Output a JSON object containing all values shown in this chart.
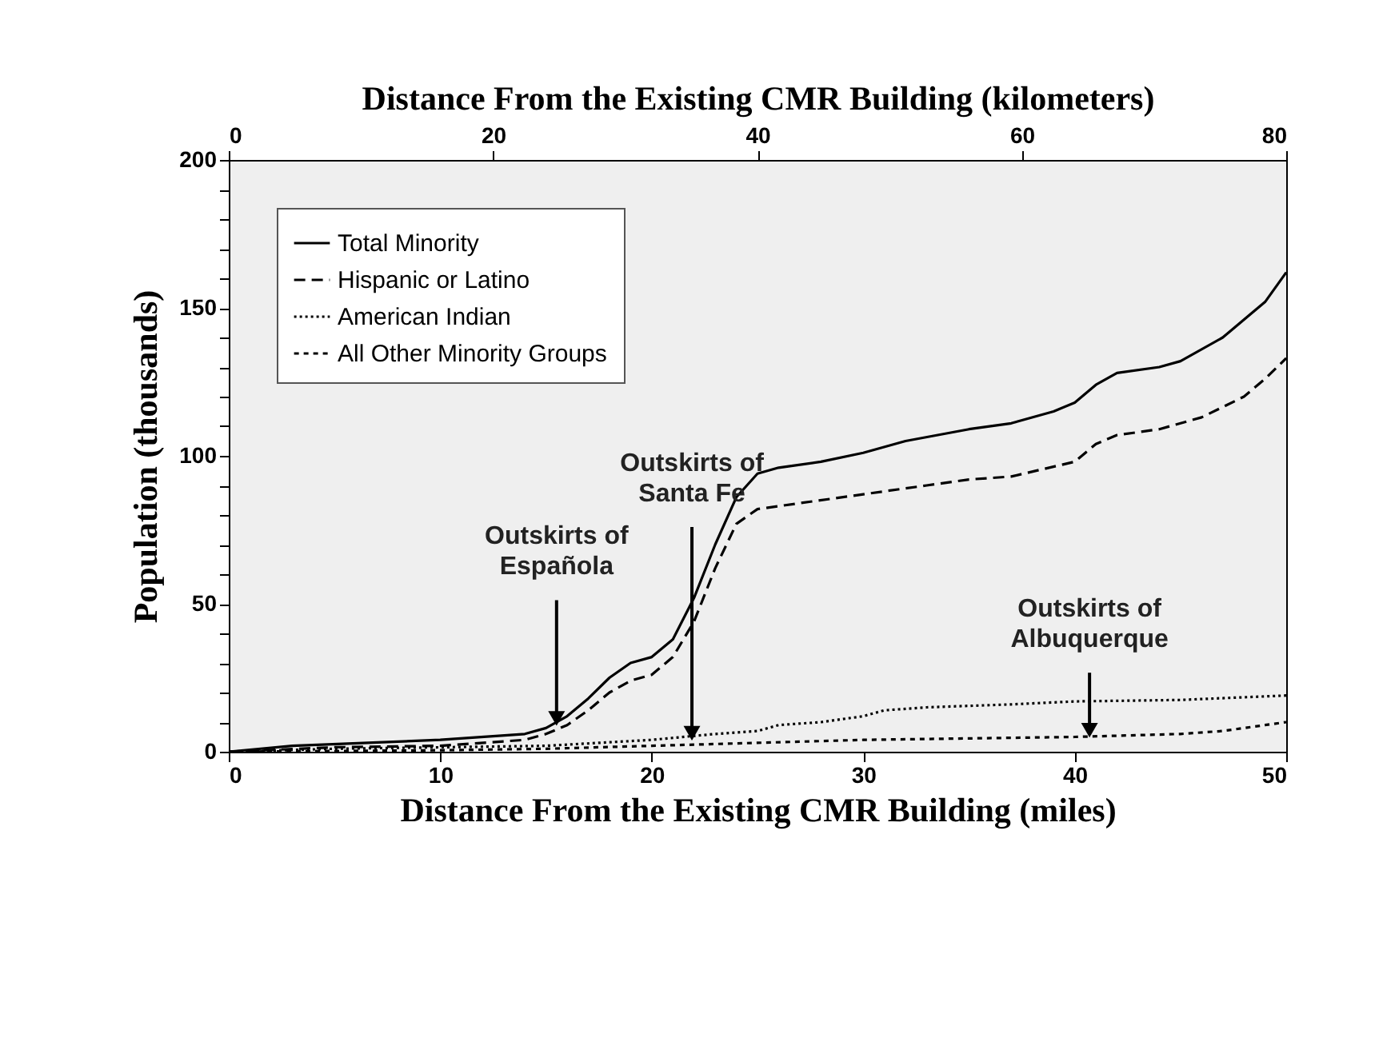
{
  "chart_data": {
    "type": "line",
    "xlabel": "Distance From the Existing CMR Building (miles)",
    "x2label": "Distance From the Existing CMR Building (kilometers)",
    "ylabel": "Population (thousands)",
    "xlim": [
      0,
      50
    ],
    "xticks": [
      0,
      10,
      20,
      30,
      40,
      50
    ],
    "x2lim": [
      0,
      80
    ],
    "x2ticks": [
      0,
      20,
      40,
      60,
      80
    ],
    "ylim": [
      0,
      200
    ],
    "yticks": [
      0,
      {
        "value": 10,
        "label": null
      },
      {
        "value": 20,
        "label": null
      },
      {
        "value": 30,
        "label": null
      },
      {
        "value": 40,
        "label": null
      },
      50,
      {
        "value": 60,
        "label": null
      },
      {
        "value": 70,
        "label": null
      },
      {
        "value": 80,
        "label": null
      },
      {
        "value": 90,
        "label": null
      },
      100,
      {
        "value": 110,
        "label": null
      },
      {
        "value": 120,
        "label": null
      },
      {
        "value": 130,
        "label": null
      },
      {
        "value": 140,
        "label": null
      },
      150,
      {
        "value": 160,
        "label": null
      },
      {
        "value": 170,
        "label": null
      },
      {
        "value": 180,
        "label": null
      },
      {
        "value": 190,
        "label": null
      },
      200
    ],
    "grid": false,
    "legend": "top left",
    "marker": "none",
    "series": [
      {
        "name": "Total Minority",
        "color": "#000000",
        "line_style": "solid",
        "x": [
          0,
          3,
          10,
          14,
          15,
          16,
          17,
          18,
          19,
          20,
          21,
          22,
          23,
          24,
          25,
          26,
          28,
          30,
          32,
          35,
          37,
          39,
          40,
          41,
          42,
          44,
          45,
          47,
          48,
          49,
          50
        ],
        "values": [
          0,
          2,
          4,
          6,
          8,
          12,
          18,
          25,
          30,
          32,
          38,
          52,
          70,
          86,
          94,
          96,
          98,
          101,
          105,
          109,
          111,
          115,
          118,
          124,
          128,
          130,
          132,
          140,
          146,
          152,
          162
        ]
      },
      {
        "name": "Hispanic or Latino",
        "color": "#000000",
        "line_style": "dashed",
        "x": [
          0,
          5,
          10,
          14,
          15,
          16,
          17,
          18,
          19,
          20,
          21,
          22,
          23,
          24,
          25,
          27,
          30,
          33,
          35,
          37,
          40,
          41,
          42,
          44,
          46,
          48,
          49,
          50
        ],
        "values": [
          0,
          1.5,
          2,
          4,
          6,
          9,
          14,
          20,
          24,
          26,
          32,
          44,
          62,
          77,
          82,
          84,
          87,
          90,
          92,
          93,
          98,
          104,
          107,
          109,
          113,
          120,
          126,
          133
        ]
      },
      {
        "name": "American Indian",
        "color": "#000000",
        "line_style": "dotted",
        "x": [
          0,
          5,
          10,
          15,
          20,
          23,
          25,
          26,
          28,
          30,
          31,
          33,
          37,
          40,
          45,
          50
        ],
        "values": [
          0,
          1,
          1.5,
          2,
          4,
          6,
          7,
          9,
          10,
          12,
          14,
          15,
          16,
          17,
          17.5,
          19
        ]
      },
      {
        "name": "All Other Minority Groups",
        "color": "#000000",
        "line_style": "dashed",
        "x": [
          0,
          10,
          15,
          20,
          25,
          30,
          40,
          45,
          47,
          49,
          50
        ],
        "values": [
          0,
          0.5,
          1,
          2,
          3,
          4,
          5,
          6,
          7,
          9,
          10
        ]
      }
    ],
    "annotations": [
      {
        "text": "Outskirts of\nEspañola",
        "x": 15.5,
        "y": 8
      },
      {
        "text": "Outskirts of\nSanta Fe",
        "x": 21.9,
        "y": 3
      },
      {
        "text": "Outskirts of\nAlbuquerque",
        "x": 40.7,
        "y": 4
      }
    ]
  }
}
